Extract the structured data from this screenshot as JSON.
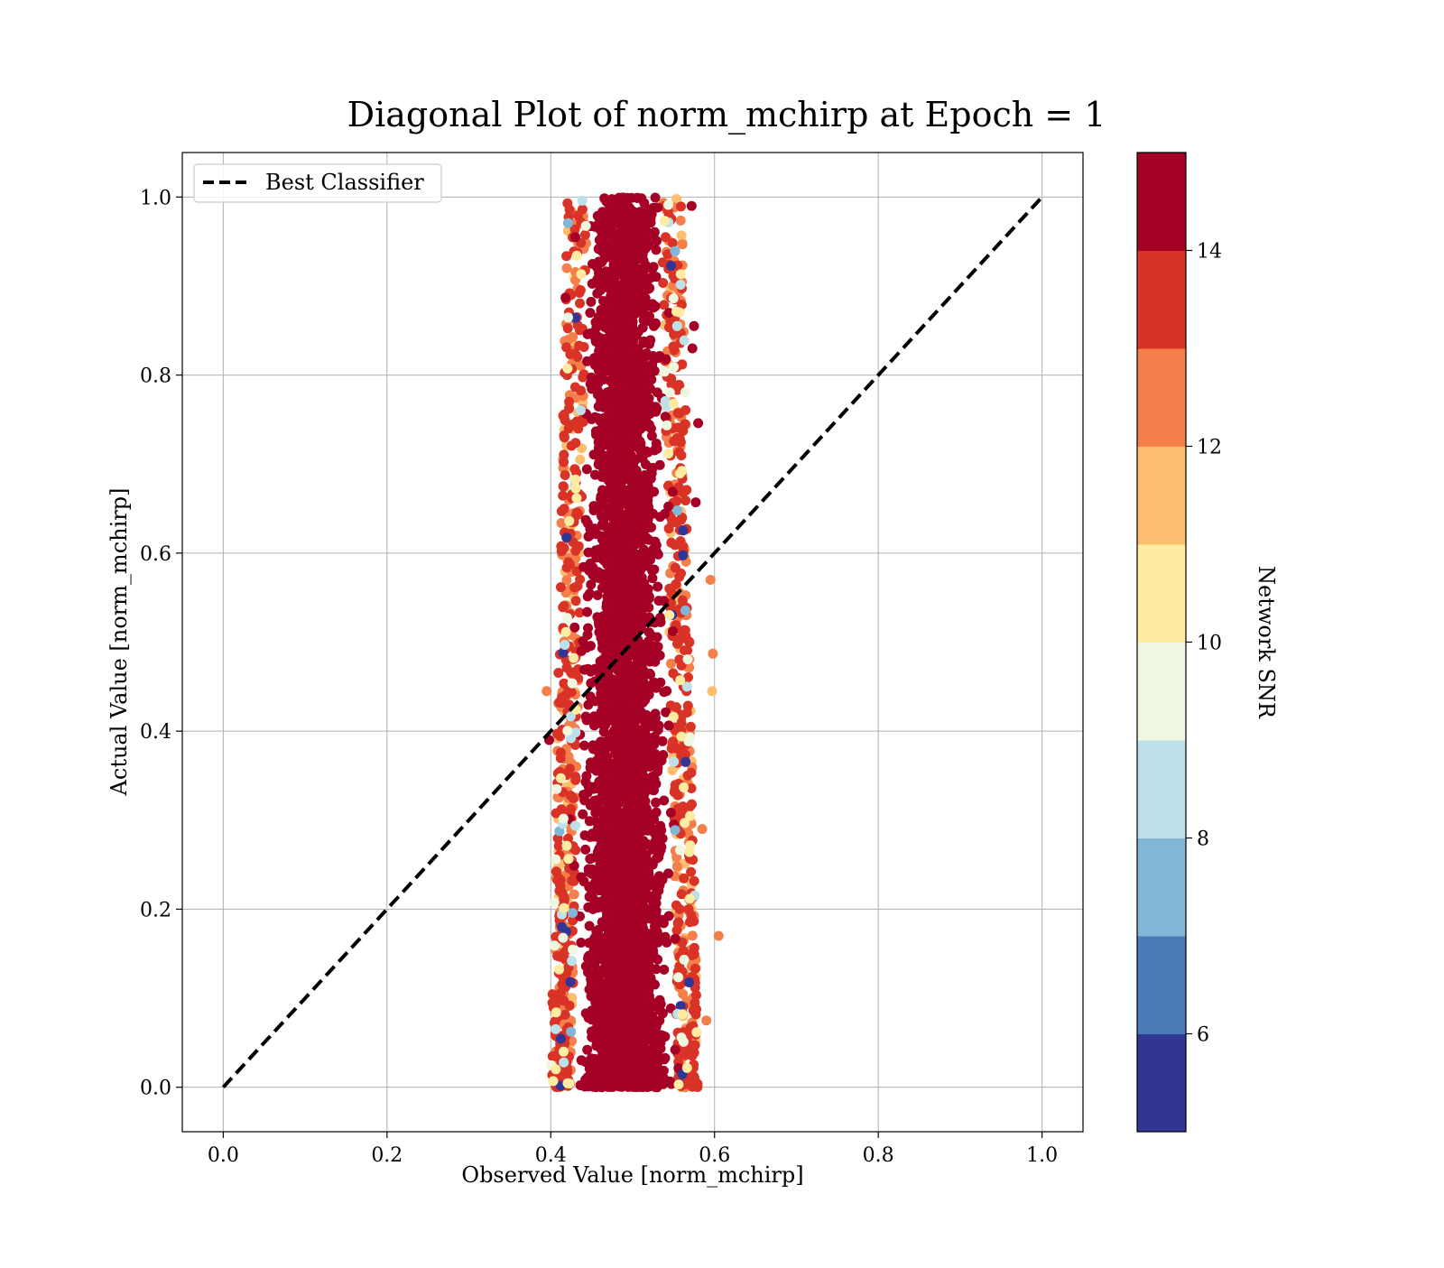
{
  "chart_data": {
    "type": "scatter",
    "title": "Diagonal Plot of norm_mchirp at Epoch = 1",
    "xlabel": "Observed Value [norm_mchirp]",
    "ylabel": "Actual Value [norm_mchirp]",
    "xlim": [
      -0.05,
      1.05
    ],
    "ylim": [
      -0.05,
      1.05
    ],
    "xticks": [
      "0.0",
      "0.2",
      "0.4",
      "0.6",
      "0.8",
      "1.0"
    ],
    "yticks": [
      "0.0",
      "0.2",
      "0.4",
      "0.6",
      "0.8",
      "1.0"
    ],
    "grid": true,
    "legend": {
      "position": "top-left",
      "entries": [
        "Best Classifier"
      ]
    },
    "reference_line": {
      "name": "Best Classifier",
      "style": "dashed",
      "color": "#000000",
      "x": [
        0.0,
        1.0
      ],
      "y": [
        0.0,
        1.0
      ]
    },
    "scatter_cloud": {
      "observed_range_at_actual_0": [
        0.4,
        0.58
      ],
      "observed_range_at_actual_1": [
        0.42,
        0.56
      ],
      "observed_center": 0.49,
      "actual_range": [
        0.0,
        1.0
      ],
      "dominant_color": "#a50026",
      "note_points": [
        {
          "x": 0.395,
          "y": 0.445,
          "snr": 13
        },
        {
          "x": 0.398,
          "y": 0.39,
          "snr": 15
        },
        {
          "x": 0.605,
          "y": 0.17,
          "snr": 13
        },
        {
          "x": 0.598,
          "y": 0.487,
          "snr": 13
        },
        {
          "x": 0.58,
          "y": 0.746,
          "snr": 15
        },
        {
          "x": 0.595,
          "y": 0.57,
          "snr": 13
        },
        {
          "x": 0.418,
          "y": 0.887,
          "snr": 15
        },
        {
          "x": 0.575,
          "y": 0.855,
          "snr": 15
        },
        {
          "x": 0.573,
          "y": 0.83,
          "snr": 15
        },
        {
          "x": 0.597,
          "y": 0.445,
          "snr": 12
        },
        {
          "x": 0.59,
          "y": 0.075,
          "snr": 13
        },
        {
          "x": 0.585,
          "y": 0.29,
          "snr": 13
        },
        {
          "x": 0.43,
          "y": 0.955,
          "snr": 15
        },
        {
          "x": 0.572,
          "y": 0.99,
          "snr": 15
        },
        {
          "x": 0.577,
          "y": 0.657,
          "snr": 15
        }
      ]
    },
    "colorbar": {
      "label": "Network SNR",
      "min": 5,
      "max": 15,
      "ticks": [
        6,
        8,
        10,
        12,
        14
      ],
      "bands": [
        {
          "from": 5,
          "to": 6,
          "color": "#313695"
        },
        {
          "from": 6,
          "to": 7,
          "color": "#4a7ab7"
        },
        {
          "from": 7,
          "to": 8,
          "color": "#82b6d6"
        },
        {
          "from": 8,
          "to": 9,
          "color": "#bde1ea"
        },
        {
          "from": 9,
          "to": 10,
          "color": "#eef7e0"
        },
        {
          "from": 10,
          "to": 11,
          "color": "#fdeca2"
        },
        {
          "from": 11,
          "to": 12,
          "color": "#fdbe70"
        },
        {
          "from": 12,
          "to": 13,
          "color": "#f47f4b"
        },
        {
          "from": 13,
          "to": 14,
          "color": "#d93327"
        },
        {
          "from": 14,
          "to": 15,
          "color": "#a50026"
        }
      ]
    }
  }
}
